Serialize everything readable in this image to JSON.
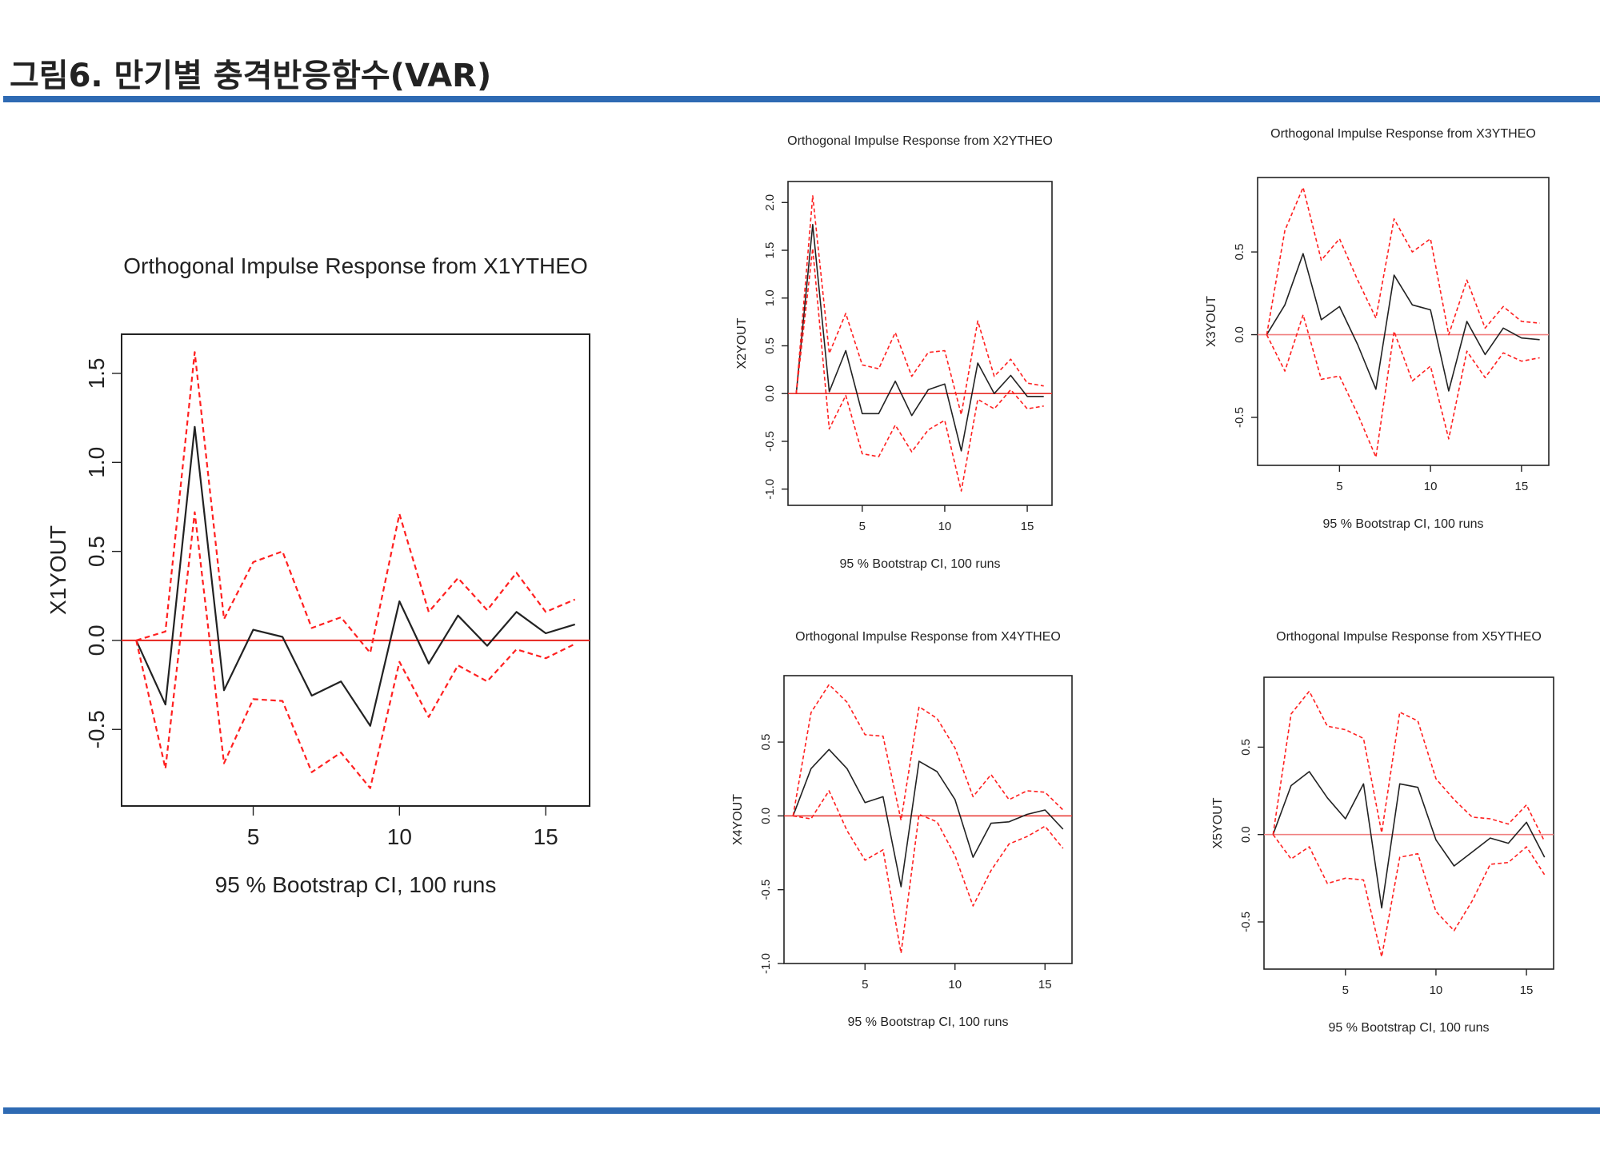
{
  "page": {
    "title": "그림6. 만기별 충격반응함수(VAR)",
    "accent_color": "#2e6ab3"
  },
  "chart_data": [
    {
      "id": "x1",
      "type": "line",
      "title": "Orthogonal Impulse Response from X1YTHEO",
      "ylabel": "X1YOUT",
      "xlabel": "95 % Bootstrap CI,  100 runs",
      "xlim": [
        0.5,
        16.5
      ],
      "ylim": [
        -0.93,
        1.72
      ],
      "xticks": [
        5,
        10,
        15
      ],
      "xtick_labels": [
        "5",
        "10",
        "15"
      ],
      "yticks": [
        -0.5,
        0,
        0.5,
        1,
        1.5
      ],
      "ytick_labels": [
        "-0.5",
        "0.0",
        "0.5",
        "1.0",
        "1.5"
      ],
      "grid": false,
      "zero_line_color": "#e8302a",
      "series": [
        {
          "role": "response",
          "color": "#222222",
          "x": [
            1,
            2,
            3,
            4,
            5,
            6,
            7,
            8,
            9,
            10,
            11,
            12,
            13,
            14,
            15,
            16
          ],
          "y": [
            0,
            -0.36,
            1.2,
            -0.28,
            0.06,
            0.02,
            -0.31,
            -0.23,
            -0.48,
            0.22,
            -0.13,
            0.14,
            -0.03,
            0.16,
            0.04,
            0.09
          ]
        },
        {
          "role": "upper",
          "color": "#ff2020",
          "x": [
            1,
            2,
            3,
            4,
            5,
            6,
            7,
            8,
            9,
            10,
            11,
            12,
            13,
            14,
            15,
            16
          ],
          "y": [
            0,
            0.05,
            1.62,
            0.12,
            0.44,
            0.5,
            0.07,
            0.13,
            -0.07,
            0.71,
            0.16,
            0.35,
            0.17,
            0.38,
            0.16,
            0.23
          ]
        },
        {
          "role": "lower",
          "color": "#ff2020",
          "x": [
            1,
            2,
            3,
            4,
            5,
            6,
            7,
            8,
            9,
            10,
            11,
            12,
            13,
            14,
            15,
            16
          ],
          "y": [
            0,
            -0.72,
            0.72,
            -0.69,
            -0.33,
            -0.34,
            -0.74,
            -0.63,
            -0.83,
            -0.12,
            -0.43,
            -0.14,
            -0.23,
            -0.05,
            -0.1,
            -0.02
          ]
        }
      ]
    },
    {
      "id": "x2",
      "type": "line",
      "title": "Orthogonal Impulse Response from X2YTHEO",
      "ylabel": "X2YOUT",
      "xlabel": "95 % Bootstrap CI,  100 runs",
      "xlim": [
        0.5,
        16.5
      ],
      "ylim": [
        -1.17,
        2.22
      ],
      "xticks": [
        5,
        10,
        15
      ],
      "xtick_labels": [
        "5",
        "10",
        "15"
      ],
      "yticks": [
        -1,
        -0.5,
        0,
        0.5,
        1,
        1.5,
        2
      ],
      "ytick_labels": [
        "-1.0",
        "-0.5",
        "0.0",
        "0.5",
        "1.0",
        "1.5",
        "2.0"
      ],
      "grid": false,
      "zero_line_color": "#e8302a",
      "series": [
        {
          "role": "response",
          "color": "#222222",
          "x": [
            1,
            2,
            3,
            4,
            5,
            6,
            7,
            8,
            9,
            10,
            11,
            12,
            13,
            14,
            15,
            16
          ],
          "y": [
            0,
            1.77,
            0.02,
            0.45,
            -0.21,
            -0.21,
            0.13,
            -0.23,
            0.04,
            0.1,
            -0.6,
            0.32,
            0.0,
            0.19,
            -0.03,
            -0.03
          ]
        },
        {
          "role": "upper",
          "color": "#ff2020",
          "x": [
            1,
            2,
            3,
            4,
            5,
            6,
            7,
            8,
            9,
            10,
            11,
            12,
            13,
            14,
            15,
            16
          ],
          "y": [
            0,
            2.07,
            0.42,
            0.84,
            0.3,
            0.26,
            0.64,
            0.18,
            0.43,
            0.45,
            -0.22,
            0.76,
            0.18,
            0.36,
            0.11,
            0.08
          ]
        },
        {
          "role": "lower",
          "color": "#ff2020",
          "x": [
            1,
            2,
            3,
            4,
            5,
            6,
            7,
            8,
            9,
            10,
            11,
            12,
            13,
            14,
            15,
            16
          ],
          "y": [
            0,
            1.52,
            -0.37,
            -0.02,
            -0.63,
            -0.66,
            -0.33,
            -0.61,
            -0.38,
            -0.28,
            -1.02,
            -0.06,
            -0.16,
            0.04,
            -0.16,
            -0.13
          ]
        }
      ]
    },
    {
      "id": "x3",
      "type": "line",
      "title": "Orthogonal Impulse Response from X3YTHEO",
      "ylabel": "X3YOUT",
      "xlabel": "95 % Bootstrap CI,  100 runs",
      "xlim": [
        0.5,
        16.5
      ],
      "ylim": [
        -0.79,
        0.95
      ],
      "xticks": [
        5,
        10,
        15
      ],
      "xtick_labels": [
        "5",
        "10",
        "15"
      ],
      "yticks": [
        -0.5,
        0,
        0.5
      ],
      "ytick_labels": [
        "-0.5",
        "0.0",
        "0.5"
      ],
      "grid": false,
      "zero_line_color": "#f08080",
      "series": [
        {
          "role": "response",
          "color": "#222222",
          "x": [
            1,
            2,
            3,
            4,
            5,
            6,
            7,
            8,
            9,
            10,
            11,
            12,
            13,
            14,
            15,
            16
          ],
          "y": [
            0,
            0.18,
            0.49,
            0.09,
            0.17,
            -0.06,
            -0.33,
            0.36,
            0.18,
            0.15,
            -0.34,
            0.08,
            -0.12,
            0.04,
            -0.02,
            -0.03
          ]
        },
        {
          "role": "upper",
          "color": "#ff2020",
          "x": [
            1,
            2,
            3,
            4,
            5,
            6,
            7,
            8,
            9,
            10,
            11,
            12,
            13,
            14,
            15,
            16
          ],
          "y": [
            0,
            0.63,
            0.89,
            0.45,
            0.58,
            0.33,
            0.1,
            0.7,
            0.5,
            0.58,
            0.0,
            0.33,
            0.04,
            0.17,
            0.08,
            0.07
          ]
        },
        {
          "role": "lower",
          "color": "#ff2020",
          "x": [
            1,
            2,
            3,
            4,
            5,
            6,
            7,
            8,
            9,
            10,
            11,
            12,
            13,
            14,
            15,
            16
          ],
          "y": [
            0,
            -0.22,
            0.12,
            -0.27,
            -0.25,
            -0.48,
            -0.74,
            0.02,
            -0.28,
            -0.19,
            -0.63,
            -0.1,
            -0.26,
            -0.11,
            -0.16,
            -0.14
          ]
        }
      ]
    },
    {
      "id": "x4",
      "type": "line",
      "title": "Orthogonal Impulse Response from X4YTHEO",
      "ylabel": "X4YOUT",
      "xlabel": "95 % Bootstrap CI,  100 runs",
      "xlim": [
        0.5,
        16.5
      ],
      "ylim": [
        -1.0,
        0.95
      ],
      "xticks": [
        5,
        10,
        15
      ],
      "xtick_labels": [
        "5",
        "10",
        "15"
      ],
      "yticks": [
        -1,
        -0.5,
        0,
        0.5
      ],
      "ytick_labels": [
        "-1.0",
        "-0.5",
        "0.0",
        "0.5"
      ],
      "grid": false,
      "zero_line_color": "#e8302a",
      "series": [
        {
          "role": "response",
          "color": "#222222",
          "x": [
            1,
            2,
            3,
            4,
            5,
            6,
            7,
            8,
            9,
            10,
            11,
            12,
            13,
            14,
            15,
            16
          ],
          "y": [
            0,
            0.32,
            0.45,
            0.32,
            0.09,
            0.13,
            -0.48,
            0.37,
            0.3,
            0.11,
            -0.28,
            -0.05,
            -0.04,
            0.01,
            0.04,
            -0.09
          ]
        },
        {
          "role": "upper",
          "color": "#ff2020",
          "x": [
            1,
            2,
            3,
            4,
            5,
            6,
            7,
            8,
            9,
            10,
            11,
            12,
            13,
            14,
            15,
            16
          ],
          "y": [
            0,
            0.7,
            0.89,
            0.77,
            0.55,
            0.54,
            -0.03,
            0.74,
            0.66,
            0.46,
            0.13,
            0.28,
            0.11,
            0.17,
            0.16,
            0.04
          ]
        },
        {
          "role": "lower",
          "color": "#ff2020",
          "x": [
            1,
            2,
            3,
            4,
            5,
            6,
            7,
            8,
            9,
            10,
            11,
            12,
            13,
            14,
            15,
            16
          ],
          "y": [
            0,
            -0.02,
            0.17,
            -0.1,
            -0.3,
            -0.23,
            -0.93,
            0.01,
            -0.04,
            -0.27,
            -0.61,
            -0.37,
            -0.19,
            -0.14,
            -0.07,
            -0.22
          ]
        }
      ]
    },
    {
      "id": "x5",
      "type": "line",
      "title": "Orthogonal Impulse Response from X5YTHEO",
      "ylabel": "X5YOUT",
      "xlabel": "95 % Bootstrap CI,  100 runs",
      "xlim": [
        0.5,
        16.5
      ],
      "ylim": [
        -0.77,
        0.9
      ],
      "xticks": [
        5,
        10,
        15
      ],
      "xtick_labels": [
        "5",
        "10",
        "15"
      ],
      "yticks": [
        -0.5,
        0,
        0.5
      ],
      "ytick_labels": [
        "-0.5",
        "0.0",
        "0.5"
      ],
      "grid": false,
      "zero_line_color": "#f08080",
      "series": [
        {
          "role": "response",
          "color": "#222222",
          "x": [
            1,
            2,
            3,
            4,
            5,
            6,
            7,
            8,
            9,
            10,
            11,
            12,
            13,
            14,
            15,
            16
          ],
          "y": [
            0,
            0.28,
            0.36,
            0.21,
            0.09,
            0.29,
            -0.42,
            0.29,
            0.27,
            -0.03,
            -0.18,
            -0.1,
            -0.02,
            -0.05,
            0.07,
            -0.13
          ]
        },
        {
          "role": "upper",
          "color": "#ff2020",
          "x": [
            1,
            2,
            3,
            4,
            5,
            6,
            7,
            8,
            9,
            10,
            11,
            12,
            13,
            14,
            15,
            16
          ],
          "y": [
            0,
            0.69,
            0.82,
            0.62,
            0.6,
            0.55,
            0.01,
            0.7,
            0.65,
            0.32,
            0.2,
            0.1,
            0.09,
            0.06,
            0.17,
            -0.04
          ]
        },
        {
          "role": "lower",
          "color": "#ff2020",
          "x": [
            1,
            2,
            3,
            4,
            5,
            6,
            7,
            8,
            9,
            10,
            11,
            12,
            13,
            14,
            15,
            16
          ],
          "y": [
            0,
            -0.14,
            -0.07,
            -0.28,
            -0.25,
            -0.26,
            -0.7,
            -0.13,
            -0.11,
            -0.44,
            -0.55,
            -0.38,
            -0.17,
            -0.16,
            -0.07,
            -0.23
          ]
        }
      ]
    }
  ]
}
